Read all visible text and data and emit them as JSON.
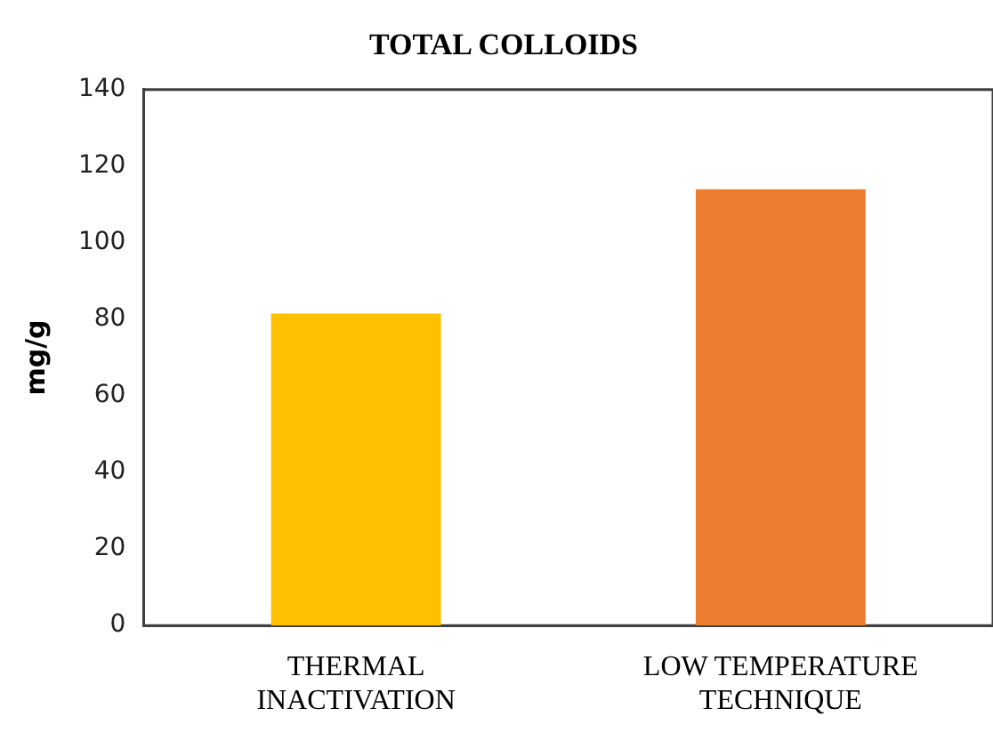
{
  "chart_data": {
    "type": "bar",
    "title": "TOTAL COLLOIDS",
    "ylabel": "mg/g",
    "categories": [
      "THERMAL\nINACTIVATION",
      "LOW TEMPERATURE\nTECHNIQUE"
    ],
    "values": [
      81.5,
      114
    ],
    "colors": [
      "#ffc000",
      "#ed7d31"
    ],
    "ylim": [
      0,
      140
    ],
    "yticks": [
      0,
      20,
      40,
      60,
      80,
      100,
      120,
      140
    ],
    "grid": false,
    "legend": false
  }
}
